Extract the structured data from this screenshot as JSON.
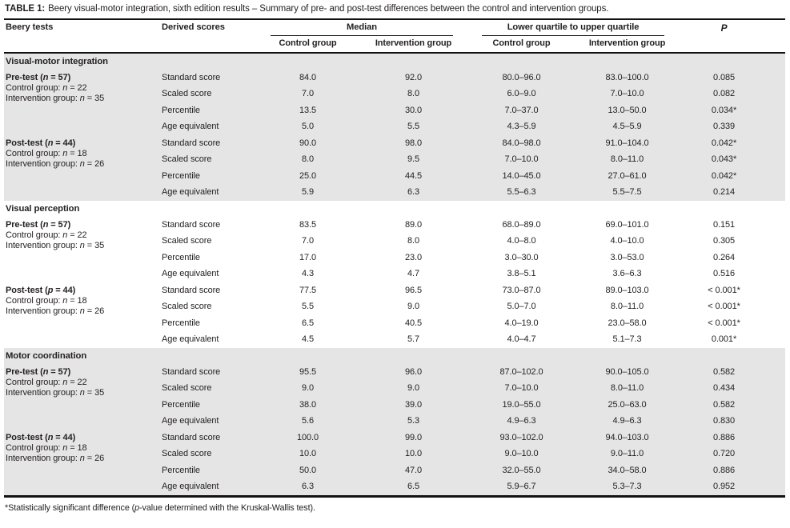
{
  "caption": {
    "label": "TABLE 1:",
    "text": "Beery visual-motor integration, sixth edition results – Summary of pre- and post-test differences between the control and intervention groups."
  },
  "header": {
    "beery_tests": "Beery tests",
    "derived_scores": "Derived scores",
    "median_group": "Median",
    "quartile_group": "Lower quartile to upper quartile",
    "p": "P",
    "subcols": [
      "Control group",
      "Intervention group",
      "Control group",
      "Intervention group"
    ]
  },
  "colors": {
    "shaded_band": "#e5e5e6",
    "text": "#231f20",
    "rule": "#121212"
  },
  "sections": [
    {
      "name": "Visual-motor integration",
      "shaded": true,
      "blocks": [
        {
          "label_lines": [
            "Pre-test (n = 57)",
            "Control group: n = 22",
            "Intervention group: n = 35"
          ],
          "rows": [
            {
              "score": "Standard score",
              "values": [
                "84.0",
                "92.0",
                "80.0–96.0",
                "83.0–100.0",
                "0.085"
              ]
            },
            {
              "score": "Scaled score",
              "values": [
                "7.0",
                "8.0",
                "6.0–9.0",
                "7.0–10.0",
                "0.082"
              ]
            },
            {
              "score": "Percentile",
              "values": [
                "13.5",
                "30.0",
                "7.0–37.0",
                "13.0–50.0",
                "0.034*"
              ]
            },
            {
              "score": "Age equivalent",
              "values": [
                "5.0",
                "5.5",
                "4.3–5.9",
                "4.5–5.9",
                "0.339"
              ]
            }
          ]
        },
        {
          "label_lines": [
            "Post-test (n = 44)",
            "Control group: n = 18",
            "Intervention group: n = 26"
          ],
          "rows": [
            {
              "score": "Standard score",
              "values": [
                "90.0",
                "98.0",
                "84.0–98.0",
                "91.0–104.0",
                "0.042*"
              ]
            },
            {
              "score": "Scaled score",
              "values": [
                "8.0",
                "9.5",
                "7.0–10.0",
                "8.0–11.0",
                "0.043*"
              ]
            },
            {
              "score": "Percentile",
              "values": [
                "25.0",
                "44.5",
                "14.0–45.0",
                "27.0–61.0",
                "0.042*"
              ]
            },
            {
              "score": "Age equivalent",
              "values": [
                "5.9",
                "6.3",
                "5.5–6.3",
                "5.5–7.5",
                "0.214"
              ]
            }
          ]
        }
      ]
    },
    {
      "name": "Visual perception",
      "shaded": false,
      "blocks": [
        {
          "label_lines": [
            "Pre-test (n = 57)",
            "Control group: n = 22",
            "Intervention group: n = 35"
          ],
          "rows": [
            {
              "score": "Standard score",
              "values": [
                "83.5",
                "89.0",
                "68.0–89.0",
                "69.0–101.0",
                "0.151"
              ]
            },
            {
              "score": "Scaled score",
              "values": [
                "7.0",
                "8.0",
                "4.0–8.0",
                "4.0–10.0",
                "0.305"
              ]
            },
            {
              "score": "Percentile",
              "values": [
                "17.0",
                "23.0",
                "3.0–30.0",
                "3.0–53.0",
                "0.264"
              ]
            },
            {
              "score": "Age equivalent",
              "values": [
                "4.3",
                "4.7",
                "3.8–5.1",
                "3.6–6.3",
                "0.516"
              ]
            }
          ]
        },
        {
          "label_lines": [
            "Post-test (p = 44)",
            "Control group: n = 18",
            "Intervention group: n = 26"
          ],
          "rows": [
            {
              "score": "Standard score",
              "values": [
                "77.5",
                "96.5",
                "73.0–87.0",
                "89.0–103.0",
                "< 0.001*"
              ]
            },
            {
              "score": "Scaled score",
              "values": [
                "5.5",
                "9.0",
                "5.0–7.0",
                "8.0–11.0",
                "< 0.001*"
              ]
            },
            {
              "score": "Percentile",
              "values": [
                "6.5",
                "40.5",
                "4.0–19.0",
                "23.0–58.0",
                "< 0.001*"
              ]
            },
            {
              "score": "Age equivalent",
              "values": [
                "4.5",
                "5.7",
                "4.0–4.7",
                "5.1–7.3",
                "0.001*"
              ]
            }
          ]
        }
      ]
    },
    {
      "name": "Motor coordination",
      "shaded": true,
      "blocks": [
        {
          "label_lines": [
            "Pre-test (n = 57)",
            "Control group: n = 22",
            "Intervention group: n = 35"
          ],
          "rows": [
            {
              "score": "Standard score",
              "values": [
                "95.5",
                "96.0",
                "87.0–102.0",
                "90.0–105.0",
                "0.582"
              ]
            },
            {
              "score": "Scaled score",
              "values": [
                "9.0",
                "9.0",
                "7.0–10.0",
                "8.0–11.0",
                "0.434"
              ]
            },
            {
              "score": "Percentile",
              "values": [
                "38.0",
                "39.0",
                "19.0–55.0",
                "25.0–63.0",
                "0.582"
              ]
            },
            {
              "score": "Age equivalent",
              "values": [
                "5.6",
                "5.3",
                "4.9–6.3",
                "4.9–6.3",
                "0.830"
              ]
            }
          ]
        },
        {
          "label_lines": [
            "Post-test (n = 44)",
            "Control group: n = 18",
            "Intervention group: n = 26"
          ],
          "rows": [
            {
              "score": "Standard score",
              "values": [
                "100.0",
                "99.0",
                "93.0–102.0",
                "94.0–103.0",
                "0.886"
              ]
            },
            {
              "score": "Scaled score",
              "values": [
                "10.0",
                "10.0",
                "9.0–10.0",
                "9.0–11.0",
                "0.720"
              ]
            },
            {
              "score": "Percentile",
              "values": [
                "50.0",
                "47.0",
                "32.0–55.0",
                "34.0–58.0",
                "0.886"
              ]
            },
            {
              "score": "Age equivalent",
              "values": [
                "6.3",
                "6.5",
                "5.9–6.7",
                "5.3–7.3",
                "0.952"
              ]
            }
          ]
        }
      ]
    }
  ],
  "footnote": {
    "pre": "*Statistically significant difference (",
    "italic": "p",
    "post": "-value determined with the Kruskal-Wallis test)."
  }
}
